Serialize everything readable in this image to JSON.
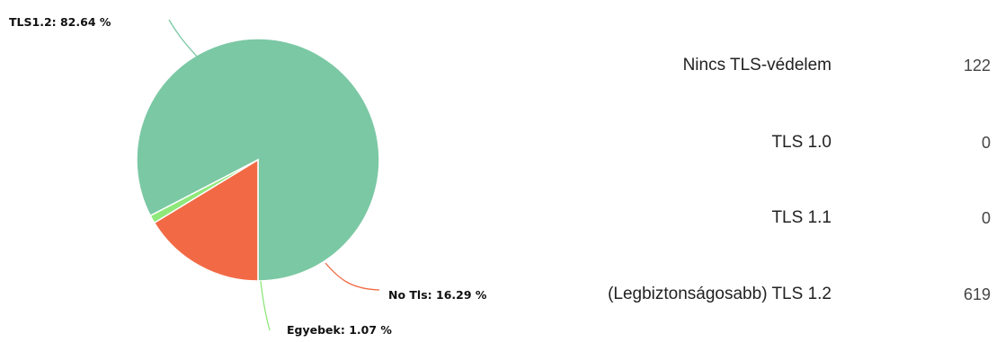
{
  "chart_data": {
    "type": "pie",
    "slices": [
      {
        "label": "TLS1.2: 82.64 %",
        "value": 82.64,
        "color": "#7bc8a4"
      },
      {
        "label": "No Tls: 16.29 %",
        "value": 16.29,
        "color": "#f26a45"
      },
      {
        "label": "Egyebek: 1.07 %",
        "value": 1.07,
        "color": "#8ee87a"
      }
    ]
  },
  "stats": {
    "rows": [
      {
        "label": "Nincs TLS-védelem",
        "value": "122"
      },
      {
        "label": "TLS 1.0",
        "value": "0"
      },
      {
        "label": "TLS 1.1",
        "value": "0"
      },
      {
        "label": "(Legbiztonságosabb) TLS 1.2",
        "value": "619"
      }
    ]
  }
}
